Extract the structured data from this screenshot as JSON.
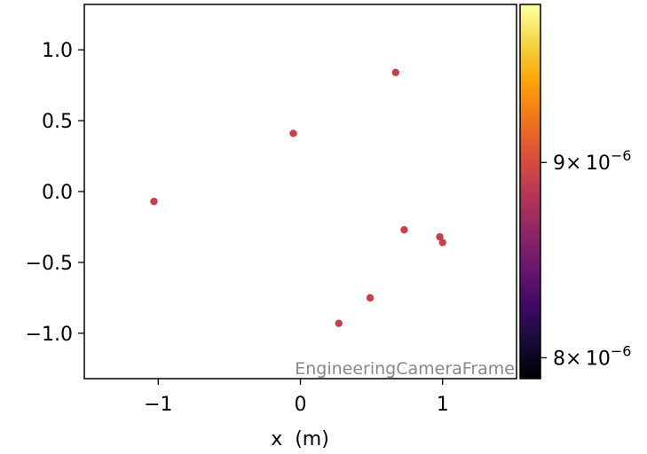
{
  "chart_data": {
    "type": "scatter",
    "title": "",
    "xlabel": "x  (m)",
    "ylabel": "",
    "xlim": [
      -1.52,
      1.52
    ],
    "ylim": [
      -1.32,
      1.32
    ],
    "x_ticks": [
      -1,
      0,
      1
    ],
    "x_tick_labels": [
      "−1",
      "0",
      "1"
    ],
    "y_ticks": [
      1.0,
      0.5,
      0.0,
      -0.5,
      -1.0
    ],
    "y_tick_labels": [
      "1.0",
      "0.5",
      "0.0",
      "−0.5",
      "−1.0"
    ],
    "points": [
      {
        "x": -1.03,
        "y": -0.07
      },
      {
        "x": -0.05,
        "y": 0.41
      },
      {
        "x": 0.67,
        "y": 0.84
      },
      {
        "x": 0.73,
        "y": -0.27
      },
      {
        "x": 0.98,
        "y": -0.32
      },
      {
        "x": 1.0,
        "y": -0.36
      },
      {
        "x": 0.49,
        "y": -0.75
      },
      {
        "x": 0.27,
        "y": -0.93
      }
    ],
    "point_color": "#c73e4c",
    "annotation": "EngineeringCameraFrame",
    "grid": false,
    "legend": "none",
    "colorbar": {
      "colormap": "inferno",
      "scale": "log",
      "range": [
        7.9e-06,
        9.9e-06
      ],
      "ticks": [
        {
          "value": 9e-06,
          "mantissa": "9",
          "base": "× 10",
          "exponent": "−6"
        },
        {
          "value": 8e-06,
          "mantissa": "8",
          "base": "× 10",
          "exponent": "−6"
        }
      ]
    }
  }
}
